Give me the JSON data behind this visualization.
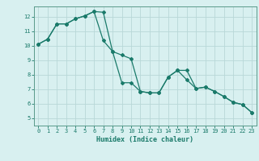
{
  "xlabel": "Humidex (Indice chaleur)",
  "ylabel": "",
  "bg_color": "#d8f0f0",
  "grid_color": "#b8d8d8",
  "line_color": "#1a7a6a",
  "spine_color": "#5a9a8a",
  "xlim": [
    -0.5,
    23.5
  ],
  "ylim": [
    4.5,
    12.7
  ],
  "xticks": [
    0,
    1,
    2,
    3,
    4,
    5,
    6,
    7,
    8,
    9,
    10,
    11,
    12,
    13,
    14,
    15,
    16,
    17,
    18,
    19,
    20,
    21,
    22,
    23
  ],
  "yticks": [
    5,
    6,
    7,
    8,
    9,
    10,
    11,
    12
  ],
  "line1_x": [
    0,
    1,
    2,
    3,
    4,
    5,
    6,
    7,
    8,
    9,
    10,
    11,
    12,
    13,
    14,
    15,
    16,
    17,
    18,
    19,
    20,
    21,
    22,
    23
  ],
  "line1_y": [
    10.1,
    10.45,
    11.5,
    11.5,
    11.85,
    12.05,
    12.35,
    10.35,
    9.6,
    9.35,
    9.1,
    6.85,
    6.75,
    6.75,
    7.85,
    8.3,
    7.65,
    7.05,
    7.15,
    6.85,
    6.5,
    6.1,
    5.95,
    5.4
  ],
  "line2_x": [
    0,
    1,
    2,
    3,
    4,
    5,
    6,
    7,
    8,
    9,
    10,
    11,
    12,
    13,
    14,
    15,
    16,
    17,
    18,
    19,
    20,
    21,
    22,
    23
  ],
  "line2_y": [
    10.1,
    10.45,
    11.5,
    11.5,
    11.85,
    12.05,
    12.35,
    12.3,
    9.6,
    7.45,
    7.45,
    6.85,
    6.75,
    6.75,
    7.85,
    8.3,
    8.3,
    7.05,
    7.15,
    6.85,
    6.5,
    6.1,
    5.95,
    5.4
  ]
}
